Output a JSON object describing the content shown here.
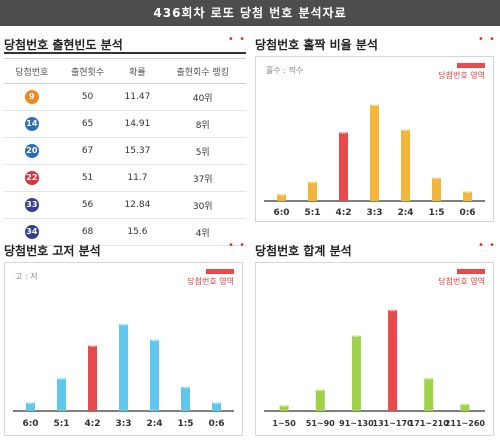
{
  "header": {
    "title": "436회차 로또 당첨 번호 분석자료"
  },
  "colors": {
    "red": "#e8494b",
    "yellow": "#f2b63b",
    "blue": "#5fc7ec",
    "green": "#9ed248"
  },
  "freq": {
    "title": "당첨번호 출현빈도 분석",
    "columns": [
      "당첨번호",
      "출현횟수",
      "확률",
      "출현회수 랭킹"
    ],
    "rows": [
      {
        "num": "9",
        "ball_color": "#f08a24",
        "count": "50",
        "prob": "11.47",
        "rank": "40위"
      },
      {
        "num": "14",
        "ball_color": "#2d6fb7",
        "count": "65",
        "prob": "14.91",
        "rank": "8위"
      },
      {
        "num": "20",
        "ball_color": "#2d6fb7",
        "count": "67",
        "prob": "15.37",
        "rank": "5위"
      },
      {
        "num": "22",
        "ball_color": "#d8333a",
        "count": "51",
        "prob": "11.7",
        "rank": "37위"
      },
      {
        "num": "33",
        "ball_color": "#34408c",
        "count": "56",
        "prob": "12.84",
        "rank": "30위"
      },
      {
        "num": "34",
        "ball_color": "#34408c",
        "count": "68",
        "prob": "15.6",
        "rank": "4위"
      }
    ]
  },
  "oddeven": {
    "title": "당첨번호 홀짝 비율 분석",
    "sublabel": "홀수 : 짝수",
    "legend": "당첨번호 영역"
  },
  "highlow": {
    "title": "당첨번호 고저 분석",
    "sublabel": "고 : 저",
    "legend": "당첨번호 영역"
  },
  "sum": {
    "title": "당첨번호 합계 분석",
    "legend": "당첨번호 영역"
  },
  "chart_data": [
    {
      "type": "bar",
      "id": "oddeven",
      "categories": [
        "6:0",
        "5:1",
        "4:2",
        "3:3",
        "2:4",
        "1:5",
        "0:6"
      ],
      "values": [
        0.5,
        1.4,
        5.0,
        7.0,
        5.2,
        1.7,
        0.7
      ],
      "highlight": "4:2"
    },
    {
      "type": "bar",
      "id": "highlow",
      "categories": [
        "6:0",
        "5:1",
        "4:2",
        "3:3",
        "2:4",
        "1:5",
        "0:6"
      ],
      "values": [
        0.6,
        2.3,
        4.6,
        6.1,
        5.0,
        1.7,
        0.6
      ],
      "highlight": "4:2"
    },
    {
      "type": "bar",
      "id": "sum",
      "categories": [
        "1~50",
        "51~90",
        "91~130",
        "131~170",
        "171~210",
        "211~260"
      ],
      "values": [
        0.4,
        1.5,
        5.3,
        7.1,
        2.3,
        0.5
      ],
      "highlight": "131~170"
    }
  ]
}
